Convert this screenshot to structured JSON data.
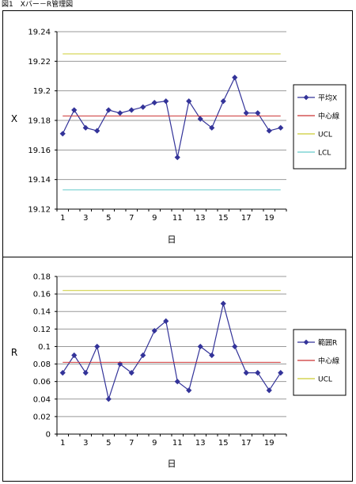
{
  "figure_title": "図1　Xバー－R管理図",
  "chart_data": [
    {
      "type": "line",
      "xlabel": "日",
      "ylabel": "X",
      "ylim": [
        19.12,
        19.24
      ],
      "yticks": [
        "19.12",
        "19.14",
        "19.16",
        "19.18",
        "19.2",
        "19.22",
        "19.24"
      ],
      "yticks_values": [
        19.12,
        19.14,
        19.16,
        19.18,
        19.2,
        19.22,
        19.24
      ],
      "x": [
        1,
        2,
        3,
        4,
        5,
        6,
        7,
        8,
        9,
        10,
        11,
        12,
        13,
        14,
        15,
        16,
        17,
        18,
        19,
        20
      ],
      "xticks": [
        "1",
        "3",
        "5",
        "7",
        "9",
        "11",
        "13",
        "15",
        "17",
        "19"
      ],
      "grid": "horizontal",
      "legend_position": "right",
      "series": [
        {
          "name": "平均X",
          "color": "#333399",
          "marker": "diamond",
          "values": [
            19.171,
            19.187,
            19.175,
            19.173,
            19.187,
            19.185,
            19.187,
            19.189,
            19.192,
            19.193,
            19.155,
            19.193,
            19.181,
            19.175,
            19.193,
            19.209,
            19.185,
            19.185,
            19.173,
            19.175
          ]
        },
        {
          "name": "中心線",
          "color": "#cc3333",
          "constant": 19.183
        },
        {
          "name": "UCL",
          "color": "#cccc33",
          "constant": 19.225
        },
        {
          "name": "LCL",
          "color": "#66cccc",
          "constant": 19.133
        }
      ]
    },
    {
      "type": "line",
      "xlabel": "日",
      "ylabel": "R",
      "ylim": [
        0,
        0.18
      ],
      "yticks": [
        "0",
        "0.02",
        "0.04",
        "0.06",
        "0.08",
        "0.1",
        "0.12",
        "0.14",
        "0.16",
        "0.18"
      ],
      "yticks_values": [
        0,
        0.02,
        0.04,
        0.06,
        0.08,
        0.1,
        0.12,
        0.14,
        0.16,
        0.18
      ],
      "x": [
        1,
        2,
        3,
        4,
        5,
        6,
        7,
        8,
        9,
        10,
        11,
        12,
        13,
        14,
        15,
        16,
        17,
        18,
        19,
        20
      ],
      "xticks": [
        "1",
        "3",
        "5",
        "7",
        "9",
        "11",
        "13",
        "15",
        "17",
        "19"
      ],
      "grid": "horizontal",
      "legend_position": "right",
      "series": [
        {
          "name": "範囲R",
          "color": "#333399",
          "marker": "diamond",
          "values": [
            0.07,
            0.09,
            0.07,
            0.1,
            0.04,
            0.08,
            0.07,
            0.09,
            0.118,
            0.129,
            0.06,
            0.05,
            0.1,
            0.09,
            0.149,
            0.1,
            0.07,
            0.07,
            0.05,
            0.07
          ]
        },
        {
          "name": "中心線",
          "color": "#cc3333",
          "constant": 0.082
        },
        {
          "name": "UCL",
          "color": "#cccc33",
          "constant": 0.164
        }
      ]
    }
  ]
}
